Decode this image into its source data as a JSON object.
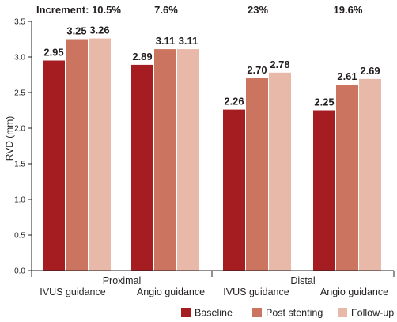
{
  "chart_data": {
    "type": "bar",
    "ylabel": "RVD (mm)",
    "ylim": [
      0,
      3.5
    ],
    "yticks": [
      "0.0",
      "0.5",
      "1.0",
      "1.5",
      "2.0",
      "2.5",
      "3.0",
      "3.5"
    ],
    "grid": false,
    "legend_position": "bottom-right",
    "groups": [
      "Proximal",
      "Distal"
    ],
    "categories": [
      "IVUS guidance",
      "Angio guidance",
      "IVUS guidance",
      "Angio guidance"
    ],
    "series": [
      {
        "name": "Baseline",
        "color": "#a51d21",
        "values": [
          2.95,
          2.89,
          2.26,
          2.25
        ],
        "labels": [
          "2.95",
          "2.89",
          "2.26",
          "2.25"
        ]
      },
      {
        "name": "Post stenting",
        "color": "#cb7560",
        "values": [
          3.25,
          3.11,
          2.7,
          2.61
        ],
        "labels": [
          "3.25",
          "3.11",
          "2.70",
          "2.61"
        ]
      },
      {
        "name": "Follow-up",
        "color": "#e8b9a8",
        "values": [
          3.26,
          3.11,
          2.78,
          2.69
        ],
        "labels": [
          "3.26",
          "3.11",
          "2.78",
          "2.69"
        ]
      }
    ],
    "increments": [
      "Increment: 10.5%",
      "7.6%",
      "23%",
      "19.6%"
    ]
  }
}
